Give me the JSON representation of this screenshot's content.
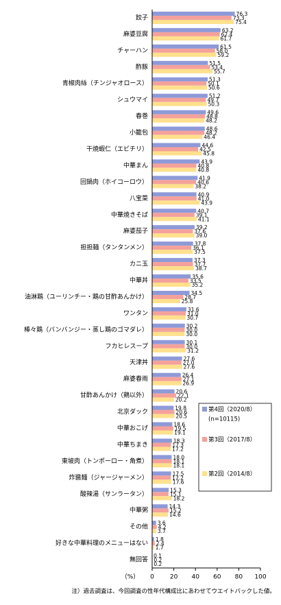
{
  "chart_data": {
    "type": "hbar",
    "categories": [
      "餃子",
      "麻婆豆腐",
      "チャーハン",
      "酢豚",
      "青椒肉絲（チンジャオロース）",
      "シュウマイ",
      "春巻",
      "小籠包",
      "干焼蝦仁（エビチリ）",
      "中華まん",
      "回鍋肉（ホイコーロウ）",
      "八宝菜",
      "中華焼きそば",
      "麻婆茄子",
      "担担麺（タンタンメン）",
      "カニ玉",
      "中華丼",
      "油淋鶏（ユーリンチー・鶏の甘酢あんかけ）",
      "ワンタン",
      "棒々鶏（バンバンジー・蒸し鶏のゴマダレ）",
      "フカヒレスープ",
      "天津丼",
      "麻婆春雨",
      "甘酢あんかけ（鶏以外）",
      "北京ダック",
      "中華おこげ",
      "中華ちまき",
      "東坡肉（トンポーロー・角煮）",
      "炸醤麺（ジャージャーメン）",
      "酸辣湯（サンラータン）",
      "中華粥",
      "その他",
      "好きな中華料理のメニューはない",
      "無回答"
    ],
    "series": [
      {
        "name": "第4回（2020/8）",
        "note": "(n=10115)",
        "color": "#8e9ad8",
        "values": [
          76.3,
          63.2,
          61.5,
          51.5,
          51.3,
          51.2,
          49.6,
          48.6,
          44.6,
          43.9,
          41.9,
          40.9,
          40.7,
          39.2,
          37.8,
          37.3,
          35.6,
          34.5,
          31.6,
          30.2,
          30.1,
          27.6,
          26.4,
          20.6,
          19.8,
          18.6,
          18.3,
          18.0,
          17.5,
          15.3,
          14.3,
          3.6,
          1.8,
          0.1
        ],
        "value_labels": [
          "76.3",
          "63.2",
          "61.5",
          "51.5",
          "51.3",
          "51.2",
          "49.6",
          "48.6",
          "44.6",
          "43.9",
          "41.9",
          "40.9",
          "40.7",
          "39.2",
          "37.8",
          "37.3",
          "35.6",
          "34.5",
          "31.6",
          "30.2",
          "30.1",
          "27.6",
          "26.4",
          "20.6",
          "19.8",
          "18.6",
          "18.3",
          "18.0",
          "17.5",
          "15.3",
          "14.3",
          "3.6",
          "1.8",
          "0.1"
        ]
      },
      {
        "name": "第3回（2017/8）",
        "color": "#f4a19b",
        "values": [
          73.3,
          62.4,
          58.0,
          53.4,
          50.1,
          49.7,
          48.8,
          48.2,
          42.5,
          40.8,
          40.6,
          41.0,
          39.1,
          37.6,
          36.1,
          37.7,
          33.5,
          28.7,
          31.0,
          30.0,
          30.0,
          27.0,
          27.1,
          22.1,
          20.6,
          19.5,
          17.3,
          18.1,
          17.2,
          15.1,
          15.2,
          4.2,
          2.4,
          0.2
        ],
        "value_labels": [
          "73.3",
          "62.4",
          "58.0",
          "53.4",
          "50.1",
          "49.7",
          "48.8",
          "48.2",
          "42.5",
          "40.8",
          "40.6",
          "41.0",
          "39.1",
          "37.6",
          "36.1",
          "37.7",
          "33.5",
          "28.7",
          "31.0",
          "30.0",
          "30.0",
          "27.0",
          "27.1",
          "22.1",
          "20.6",
          "19.5",
          "17.3",
          "18.1",
          "17.2",
          "15.1",
          "15.2",
          "4.2",
          "2.4",
          "0.2"
        ]
      },
      {
        "name": "第2回（2014/8）",
        "color": "#ffe08c",
        "values": [
          75.4,
          61.7,
          59.2,
          55.7,
          50.6,
          50.3,
          48.2,
          46.4,
          45.8,
          40.8,
          38.2,
          43.9,
          41.1,
          39.0,
          37.5,
          38.7,
          35.2,
          25.8,
          30.7,
          30.0,
          31.2,
          27.6,
          26.9,
          20.2,
          20.5,
          19.1,
          17.2,
          18.1,
          17.6,
          18.2,
          14.6,
          3.7,
          1.7,
          0.2
        ],
        "value_labels": [
          "75.4",
          "61.7",
          "59.2",
          "55.7",
          "50.6",
          "50.3",
          "48.2",
          "46.4",
          "45.8",
          "40.8",
          "38.2",
          "43.9",
          "41.1",
          "39.0",
          "37.5",
          "38.7",
          "35.2",
          "25.8",
          "30.7",
          "30.0",
          "31.2",
          "27.6",
          "26.9",
          "20.2",
          "20.5",
          "19.1",
          "17.2",
          "18.1",
          "17.6",
          "18.2",
          "14.6",
          "3.7",
          "1.7",
          "0.2"
        ]
      }
    ],
    "xlim": [
      0,
      100
    ],
    "xticks": [
      0,
      20,
      40,
      60,
      80,
      100
    ],
    "xlabel": "（%）",
    "footnote": "注）過去調査は、今回調査の性年代構成比にあわせてウエイトバックした値。"
  }
}
